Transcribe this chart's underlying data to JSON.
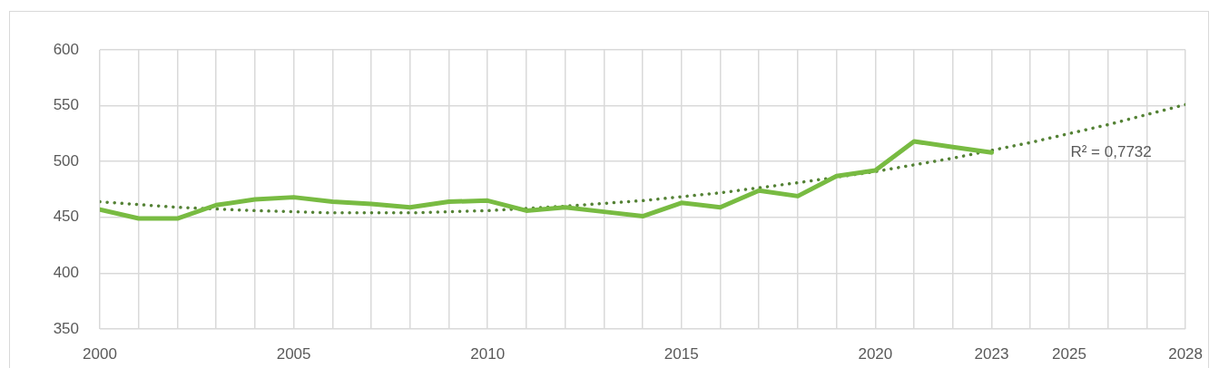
{
  "chart_data": {
    "type": "line",
    "xlim": [
      2000,
      2028
    ],
    "xticks": [
      2000,
      {
        "value": 2001,
        "label": null
      },
      {
        "value": 2002,
        "label": null
      },
      {
        "value": 2003,
        "label": null
      },
      {
        "value": 2004,
        "label": null
      },
      2005,
      {
        "value": 2006,
        "label": null
      },
      {
        "value": 2007,
        "label": null
      },
      {
        "value": 2008,
        "label": null
      },
      {
        "value": 2009,
        "label": null
      },
      2010,
      {
        "value": 2011,
        "label": null
      },
      {
        "value": 2012,
        "label": null
      },
      {
        "value": 2013,
        "label": null
      },
      {
        "value": 2014,
        "label": null
      },
      2015,
      {
        "value": 2016,
        "label": null
      },
      {
        "value": 2017,
        "label": null
      },
      {
        "value": 2018,
        "label": null
      },
      {
        "value": 2019,
        "label": null
      },
      2020,
      {
        "value": 2021,
        "label": null
      },
      {
        "value": 2022,
        "label": null
      },
      2023,
      {
        "value": 2024,
        "label": null
      },
      2025,
      {
        "value": 2026,
        "label": null
      },
      {
        "value": 2027,
        "label": null
      },
      2028
    ],
    "ylim": [
      350,
      600
    ],
    "yticks": [
      350,
      400,
      450,
      500,
      550,
      600
    ],
    "grid": true,
    "marker": "none",
    "series": [
      {
        "color": "#78bb42",
        "line_style": "solid",
        "x": [
          2000,
          2001,
          2002,
          2003,
          2004,
          2005,
          2006,
          2007,
          2008,
          2009,
          2010,
          2011,
          2012,
          2013,
          2014,
          2015,
          2016,
          2017,
          2018,
          2019,
          2020,
          2021,
          2022,
          2023
        ],
        "values": [
          457,
          449,
          449,
          461,
          466,
          468,
          464,
          462,
          459,
          464,
          465,
          456,
          459,
          455,
          451,
          463,
          459,
          474,
          469,
          487,
          492,
          518,
          513,
          508
        ]
      },
      {
        "type": "line",
        "color": "#548235",
        "line_style": "dotted",
        "x": [
          2000,
          2002,
          2004,
          2006,
          2008,
          2010,
          2012,
          2014,
          2016,
          2018,
          2020,
          2022,
          2024,
          2026,
          2028
        ],
        "values": [
          464,
          459,
          456,
          454,
          454,
          456,
          460,
          465,
          472,
          481,
          491,
          503,
          517,
          533,
          551
        ]
      }
    ],
    "annotations": [
      "R² = 0,7732"
    ]
  }
}
